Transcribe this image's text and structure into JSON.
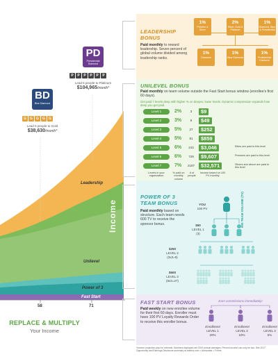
{
  "colors": {
    "purple": "#6c3b8f",
    "navy": "#2a4b7c",
    "gold": "#e5a23a",
    "green": "#5ba546",
    "teal": "#2fa3a0",
    "violet": "#8b6bb3"
  },
  "ranks": {
    "presidential": {
      "abbr": "PD",
      "name": "Presidential Diamond",
      "gem_letter": "P",
      "gem_count": 6,
      "note": "Lead 6 people to Platinum",
      "amount": "$104,965",
      "amount_suffix": "/month*"
    },
    "blue": {
      "abbr": "BD",
      "name": "Blue Diamond",
      "gem_letter": "G",
      "gem_count": 5,
      "note": "Lead 5 people to Gold",
      "amount": "$38,630",
      "amount_suffix": "/month*"
    }
  },
  "chart_data": {
    "type": "area",
    "title": "",
    "xlabel": "",
    "ylabel": "Income",
    "x_ticks": [
      "58",
      "71"
    ],
    "series": [
      {
        "name": "Fast Start"
      },
      {
        "name": "Power of 3"
      },
      {
        "name": "Unilevel"
      },
      {
        "name": "Leadership"
      }
    ]
  },
  "chart_labels": {
    "leadership": "Leadership",
    "unilevel": "Unilevel",
    "power": "Power of 3",
    "fast": "Fast Start",
    "income": "Income",
    "tick_58": "58",
    "tick_71": "71"
  },
  "replace": {
    "title": "REPLACE & MULTIPLY",
    "subtitle": "Your Income"
  },
  "leadership": {
    "title_line1": "LEADERSHIP",
    "title_line2": "BONUS",
    "desc_bold": "Paid monthly",
    "desc": " to reward leadership. Seven percent of global volume divided among leadership ranks.",
    "boxes": [
      {
        "pct": "1%",
        "rank": "Premier & Silver"
      },
      {
        "pct": "2%",
        "rank": "Silver, Gold & Platinum"
      },
      {
        "pct": "1%",
        "rank": "Diamond, Blue & Presidential"
      },
      {
        "pct": "1%",
        "rank": "Diamond"
      },
      {
        "pct": "1%",
        "rank": "Blue Diamond"
      },
      {
        "pct": "1%",
        "rank": "Presidential Diamond"
      }
    ]
  },
  "unilevel": {
    "title": "UNILEVEL BONUS",
    "desc_bold": "Paid monthly",
    "desc": " on team volume outside the Fast Start bonus window (enrollee's first 60 days).",
    "sub": "Get paid 7 levels deep with higher % on deeper, lower levels. Dynamic compression expands how deep you get paid.",
    "rows": [
      {
        "level": "Level 1",
        "pct": "2%",
        "people": "3",
        "amount": "$9",
        "note": ""
      },
      {
        "level": "Level 2",
        "pct": "3%",
        "people": "9",
        "amount": "$49",
        "note": ""
      },
      {
        "level": "Level 3",
        "pct": "5%",
        "people": "27",
        "amount": "$252",
        "note": ""
      },
      {
        "level": "Level 4",
        "pct": "5%",
        "people": "81",
        "amount": "$859",
        "note": ""
      },
      {
        "level": "Level 5",
        "pct": "6%",
        "people": "243",
        "amount": "$3,046",
        "note": "Elites are paid to this level"
      },
      {
        "level": "Level 6",
        "pct": "6%",
        "people": "729",
        "amount": "$9,607",
        "note": "Premiers are paid to this level"
      },
      {
        "level": "Level 7",
        "pct": "7%",
        "people": "2187",
        "amount": "$32,571",
        "note": "Silvers and above are paid to this level"
      }
    ],
    "col_level": "Levels in your organization",
    "col_pct": "% paid on monthly volume",
    "col_people": "# of people",
    "col_amount": "Income based on 100 PV monthly"
  },
  "power": {
    "title_line1": "POWER OF 3",
    "title_line2": "TEAM BONUS",
    "desc_bold": "Paid monthly",
    "desc": " based on structure. Each team needs 600 TV to receive the sponsor bonus.",
    "you": "YOU",
    "you_pv": "100 PV",
    "lvl1_amt": "$50",
    "lvl1_lbl": "LEVEL 1",
    "lvl1_count": "(3)",
    "lvl2_amt": "$250",
    "lvl2_lbl": "LEVEL 2",
    "lvl2_count": "(3x3=9)",
    "lvl3_amt": "$500",
    "lvl3_lbl": "LEVEL 3",
    "lvl3_count": "(9x3=27)",
    "tv_label": "600 TEAM VOLUME (TV)"
  },
  "fast": {
    "title": "FAST START BONUS",
    "desc_bold1": "Paid weekly",
    "desc1": " on new enrollee volume for their first 60 days. Enroller must have 100 PV Loyalty Rewards Order to receive this enroller bonus.",
    "earn": "Earn commissions immediately!",
    "people": [
      {
        "label": "Enrollment",
        "level": "LEVEL 1",
        "pct": "20%"
      },
      {
        "label": "Enrollment",
        "level": "LEVEL 2",
        "pct": "10%"
      },
      {
        "label": "Enrollment",
        "level": "LEVEL 3",
        "pct": "5%"
      }
    ]
  },
  "footnote": "*Income projection plan for referrals. Numbers displayed are 2019 annual averages. Percent income can only be two. See 2017 Opportunity and Earnings Disclosure summary at doterra.com > Advocates > Forms"
}
